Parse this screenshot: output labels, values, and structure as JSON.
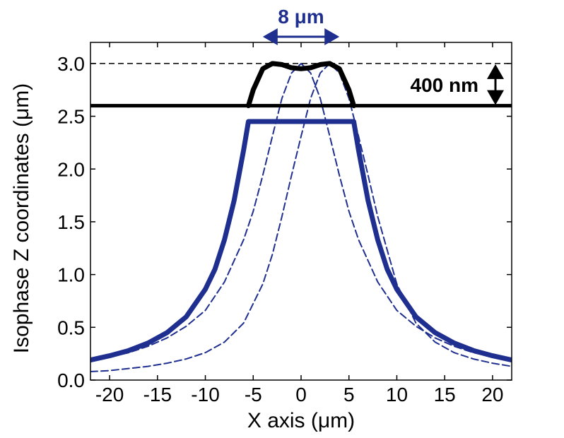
{
  "chart_data": {
    "type": "line",
    "title": "",
    "xlabel": "X axis (μm)",
    "ylabel": "Isophase Z coordinates (μm)",
    "xlim": [
      -22,
      22
    ],
    "ylim": [
      0,
      3.2
    ],
    "xticks": [
      -20,
      -15,
      -10,
      -5,
      0,
      5,
      10,
      15,
      20
    ],
    "xtick_labels": [
      "-20",
      "-15",
      "-10",
      "-5",
      "0",
      "5",
      "10",
      "15",
      "20"
    ],
    "yticks": [
      0,
      0.5,
      1.0,
      1.5,
      2.0,
      2.5,
      3.0
    ],
    "ytick_labels": [
      "0.0",
      "0.5",
      "1.0",
      "1.5",
      "2.0",
      "2.5",
      "3.0"
    ],
    "grid": false,
    "legend": "none",
    "series": [
      {
        "style": "dashed",
        "color": "#1f2f8f",
        "x": [
          -22,
          -20,
          -18,
          -16,
          -14,
          -12,
          -10,
          -8,
          -6,
          -5,
          -4,
          -3,
          -2,
          -1,
          0,
          1,
          2,
          3,
          4,
          5,
          6,
          8,
          10,
          12,
          14,
          16,
          18,
          20,
          22
        ],
        "y": [
          0.19,
          0.22,
          0.26,
          0.32,
          0.4,
          0.51,
          0.66,
          0.93,
          1.33,
          1.6,
          1.94,
          2.31,
          2.67,
          2.91,
          3.0,
          2.91,
          2.67,
          2.31,
          1.94,
          1.6,
          1.33,
          0.93,
          0.66,
          0.51,
          0.4,
          0.32,
          0.26,
          0.22,
          0.19
        ]
      },
      {
        "style": "dashed",
        "color": "#1f2f8f",
        "x": [
          -22,
          -20,
          -18,
          -16,
          -14,
          -12,
          -10,
          -8,
          -6,
          -4,
          -3,
          -2,
          -1,
          0,
          1,
          2,
          3,
          4,
          5,
          6,
          7,
          8,
          10,
          12,
          14,
          16,
          18,
          20,
          22
        ],
        "y": [
          0.08,
          0.09,
          0.11,
          0.13,
          0.16,
          0.2,
          0.26,
          0.36,
          0.54,
          0.91,
          1.19,
          1.55,
          1.94,
          2.31,
          2.67,
          2.91,
          3.0,
          2.91,
          2.67,
          2.31,
          1.94,
          1.55,
          0.91,
          0.54,
          0.36,
          0.26,
          0.2,
          0.16,
          0.13
        ]
      },
      {
        "style": "solid-thick",
        "color": "#1f2f8f",
        "x": [
          -22,
          -20,
          -18,
          -16,
          -14,
          -12,
          -10,
          -9,
          -8,
          -7,
          -6,
          -5.5,
          5.5,
          6,
          7,
          8,
          9,
          10,
          12,
          14,
          16,
          18,
          20,
          22
        ],
        "y": [
          0.19,
          0.23,
          0.28,
          0.35,
          0.45,
          0.6,
          0.86,
          1.05,
          1.33,
          1.7,
          2.18,
          2.45,
          2.45,
          2.18,
          1.7,
          1.33,
          1.05,
          0.86,
          0.6,
          0.45,
          0.35,
          0.28,
          0.23,
          0.19
        ]
      },
      {
        "style": "solid-thick",
        "color": "#000000",
        "x": [
          -5.5,
          -5,
          -4,
          -3,
          -2,
          -1,
          0,
          1,
          2,
          3,
          4,
          5,
          5.5
        ],
        "y": [
          2.6,
          2.75,
          2.95,
          3.0,
          2.99,
          2.96,
          2.95,
          2.96,
          2.99,
          3.0,
          2.95,
          2.75,
          2.6
        ]
      }
    ],
    "hlines": [
      {
        "y": 3.0,
        "style": "dashed",
        "color": "#000000"
      },
      {
        "y": 2.6,
        "style": "solid",
        "color": "#000000"
      }
    ],
    "annotations": [
      {
        "text": "8 μm",
        "color": "#1f2f8f",
        "x_from": -4,
        "x_to": 4
      },
      {
        "text": "400 nm",
        "color": "#000000",
        "y_from": 2.6,
        "y_to": 3.0
      }
    ]
  }
}
